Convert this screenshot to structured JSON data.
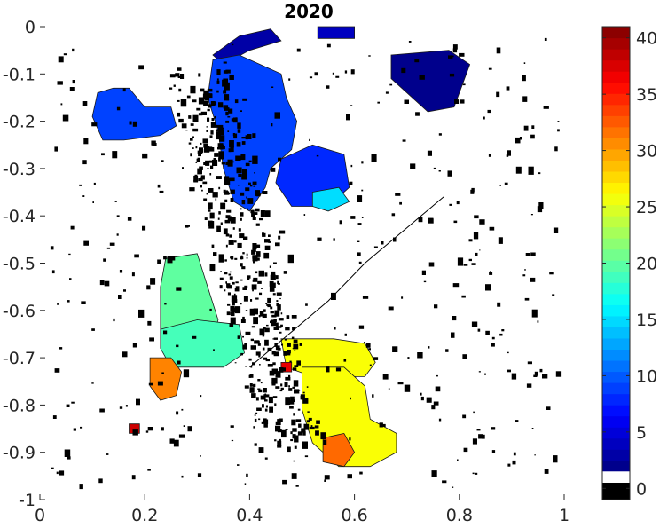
{
  "chart_data": {
    "type": "heatmap",
    "title": "2020",
    "xlabel": "",
    "ylabel": "",
    "xlim": [
      0,
      1
    ],
    "ylim": [
      -1,
      0
    ],
    "x_ticks": [
      0,
      0.2,
      0.4,
      0.6,
      0.8,
      1
    ],
    "x_tick_labels": [
      "0",
      "0.2",
      "0.4",
      "0.6",
      "0.8",
      "1"
    ],
    "y_ticks": [
      0,
      -0.1,
      -0.2,
      -0.3,
      -0.4,
      -0.5,
      -0.6,
      -0.7,
      -0.8,
      -0.9,
      -1
    ],
    "y_tick_labels": [
      "0",
      "-0.1",
      "-0.2",
      "-0.3",
      "-0.4",
      "-0.5",
      "-0.6",
      "-0.7",
      "-0.8",
      "-0.9",
      "-1"
    ],
    "grid": false,
    "colorbar": {
      "colormap": "jet",
      "range": [
        -1,
        41
      ],
      "ticks": [
        0,
        5,
        10,
        15,
        20,
        25,
        30,
        35,
        40
      ],
      "tick_labels": [
        "0",
        "5",
        "10",
        "15",
        "20",
        "25",
        "30",
        "35",
        "40"
      ],
      "special_bands": [
        {
          "range": [
            -1,
            0.5
          ],
          "color": "#000000"
        },
        {
          "range": [
            0.5,
            1.5
          ],
          "color": "#ffffff"
        }
      ]
    },
    "regions": [
      {
        "value": 3,
        "center": [
          0.42,
          -0.02
        ]
      },
      {
        "value": 4,
        "center": [
          0.56,
          -0.01
        ]
      },
      {
        "value": 2,
        "center": [
          0.76,
          -0.11
        ]
      },
      {
        "value": 9,
        "center": [
          0.18,
          -0.2
        ]
      },
      {
        "value": 9,
        "center": [
          0.41,
          -0.19
        ]
      },
      {
        "value": 8,
        "center": [
          0.52,
          -0.3
        ]
      },
      {
        "value": 15,
        "center": [
          0.56,
          -0.36
        ]
      },
      {
        "value": 20,
        "center": [
          0.27,
          -0.6
        ]
      },
      {
        "value": 19,
        "center": [
          0.3,
          -0.69
        ]
      },
      {
        "value": 31,
        "center": [
          0.24,
          -0.74
        ]
      },
      {
        "value": 26,
        "center": [
          0.58,
          -0.73
        ]
      },
      {
        "value": 26,
        "center": [
          0.62,
          -0.84
        ]
      },
      {
        "value": 32,
        "center": [
          0.57,
          -0.82
        ]
      },
      {
        "value": 37,
        "center": [
          0.48,
          -0.75
        ]
      },
      {
        "value": 38,
        "center": [
          0.18,
          -0.85
        ]
      }
    ]
  }
}
